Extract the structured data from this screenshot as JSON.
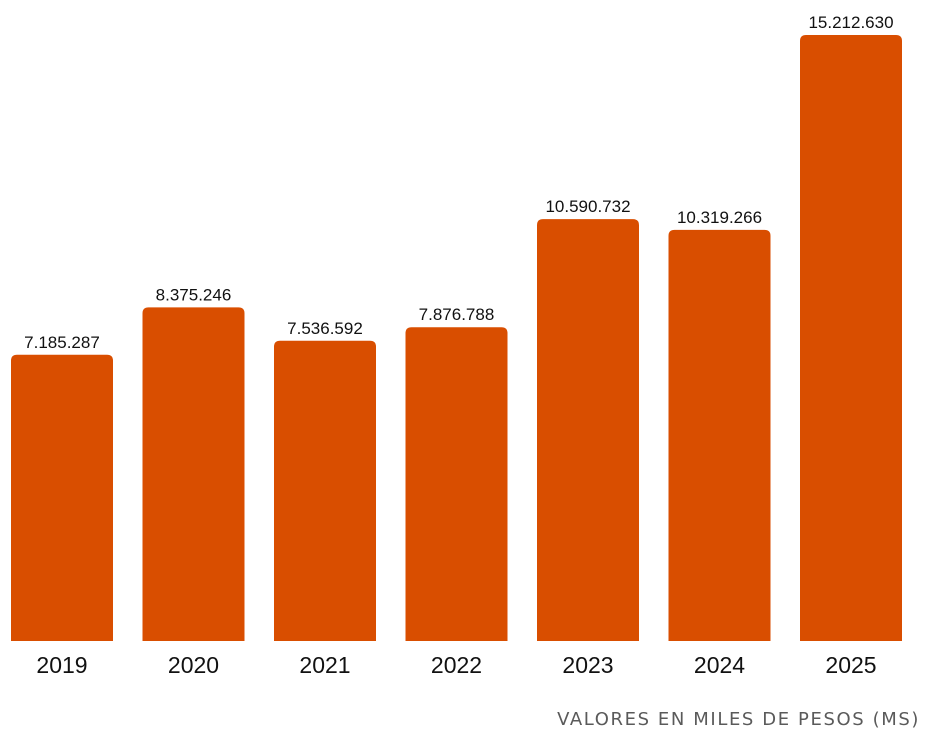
{
  "chart_data": {
    "type": "bar",
    "categories": [
      "2019",
      "2020",
      "2021",
      "2022",
      "2023",
      "2024",
      "2025"
    ],
    "values": [
      7185287,
      8375246,
      7536592,
      7876788,
      10590732,
      10319266,
      15212630
    ],
    "value_labels": [
      "7.185.287",
      "8.375.246",
      "7.536.592",
      "7.876.788",
      "10.590.732",
      "10.319.266",
      "15.212.630"
    ],
    "title": "",
    "xlabel": "",
    "ylabel": "",
    "ylim": [
      0,
      15212630
    ],
    "grid": false,
    "legend": "none",
    "bar_color": "#D94E00",
    "footnote": "VALORES EN MILES DE PESOS (MS)"
  }
}
